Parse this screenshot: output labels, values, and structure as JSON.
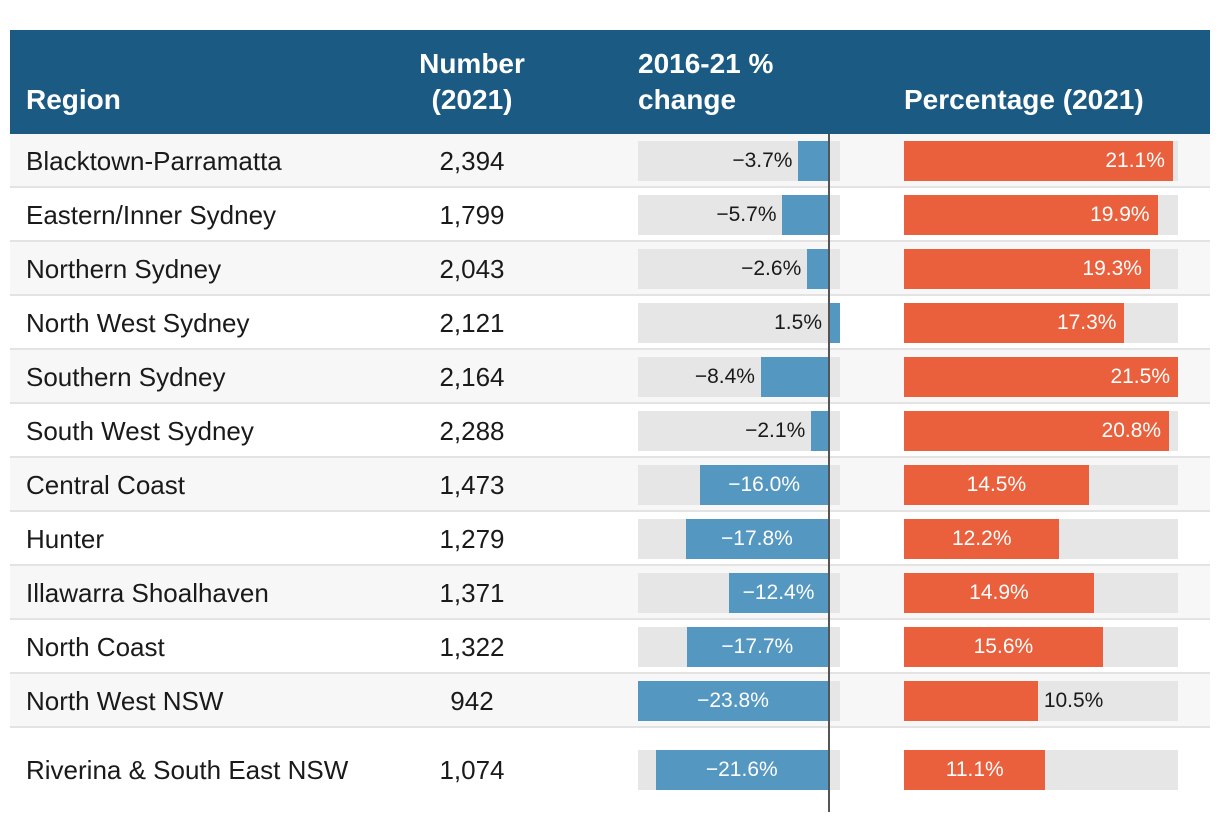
{
  "header": {
    "region": "Region",
    "number_line1": "Number",
    "number_line2": "(2021)",
    "change_line1": "2016-21 %",
    "change_line2": "change",
    "percentage": "Percentage (2021)"
  },
  "colors": {
    "header_bg": "#1b5a82",
    "change_bar": "#5497c1",
    "percentage_bar": "#ea603c",
    "track": "#e6e6e6"
  },
  "chart_data": {
    "type": "table",
    "columns": [
      "Region",
      "Number (2021)",
      "2016-21 % change",
      "Percentage (2021)"
    ],
    "change_range": [
      -23.8,
      1.5
    ],
    "percentage_range": [
      0,
      21.5
    ],
    "rows": [
      {
        "region": "Blacktown-Parramatta",
        "number": "2,394",
        "change": -3.7,
        "change_label": "−3.7%",
        "percentage": 21.1,
        "percentage_label": "21.1%"
      },
      {
        "region": "Eastern/Inner Sydney",
        "number": "1,799",
        "change": -5.7,
        "change_label": "−5.7%",
        "percentage": 19.9,
        "percentage_label": "19.9%"
      },
      {
        "region": "Northern Sydney",
        "number": "2,043",
        "change": -2.6,
        "change_label": "−2.6%",
        "percentage": 19.3,
        "percentage_label": "19.3%"
      },
      {
        "region": "North West Sydney",
        "number": "2,121",
        "change": 1.5,
        "change_label": "1.5%",
        "percentage": 17.3,
        "percentage_label": "17.3%"
      },
      {
        "region": "Southern Sydney",
        "number": "2,164",
        "change": -8.4,
        "change_label": "−8.4%",
        "percentage": 21.5,
        "percentage_label": "21.5%"
      },
      {
        "region": "South West Sydney",
        "number": "2,288",
        "change": -2.1,
        "change_label": "−2.1%",
        "percentage": 20.8,
        "percentage_label": "20.8%"
      },
      {
        "region": "Central Coast",
        "number": "1,473",
        "change": -16.0,
        "change_label": "−16.0%",
        "percentage": 14.5,
        "percentage_label": "14.5%"
      },
      {
        "region": "Hunter",
        "number": "1,279",
        "change": -17.8,
        "change_label": "−17.8%",
        "percentage": 12.2,
        "percentage_label": "12.2%"
      },
      {
        "region": "Illawarra Shoalhaven",
        "number": "1,371",
        "change": -12.4,
        "change_label": "−12.4%",
        "percentage": 14.9,
        "percentage_label": "14.9%"
      },
      {
        "region": "North Coast",
        "number": "1,322",
        "change": -17.7,
        "change_label": "−17.7%",
        "percentage": 15.6,
        "percentage_label": "15.6%"
      },
      {
        "region": "North West NSW",
        "number": "942",
        "change": -23.8,
        "change_label": "−23.8%",
        "percentage": 10.5,
        "percentage_label": "10.5%"
      },
      {
        "region": "Riverina & South East NSW",
        "number": "1,074",
        "change": -21.6,
        "change_label": "−21.6%",
        "percentage": 11.1,
        "percentage_label": "11.1%"
      }
    ]
  }
}
